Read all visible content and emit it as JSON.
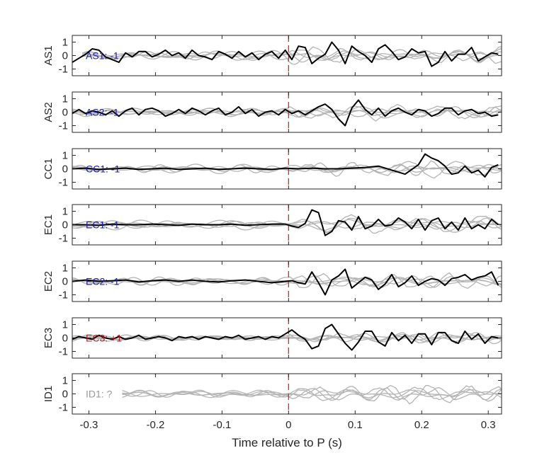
{
  "chart_data": {
    "type": "line",
    "xlabel": "Time relative to P (s)",
    "xlim": [
      -0.325,
      0.32
    ],
    "ylim": [
      -1.5,
      1.5
    ],
    "xticks": [
      -0.3,
      -0.2,
      -0.1,
      0,
      0.1,
      0.2,
      0.3
    ],
    "xtick_labels": [
      "-0.3",
      "-0.2",
      "-0.1",
      "0",
      "0.1",
      "0.2",
      "0.3"
    ],
    "yticks": [
      -1,
      0,
      1
    ],
    "ytick_labels": [
      "-1",
      "0",
      "1"
    ],
    "marker_line": {
      "x": 0,
      "color": "#e8231f",
      "style": "dashed"
    },
    "colors": {
      "trace": "#000000",
      "background_traces": "#b4b4b4",
      "axes": "#262626"
    },
    "panels": [
      {
        "station": "AS1",
        "annotation": "AS1: -1",
        "annotation_color": "#1a1aa6",
        "x": [
          -0.325,
          -0.315,
          -0.305,
          -0.295,
          -0.285,
          -0.275,
          -0.265,
          -0.255,
          -0.245,
          -0.235,
          -0.225,
          -0.215,
          -0.205,
          -0.195,
          -0.185,
          -0.175,
          -0.165,
          -0.155,
          -0.145,
          -0.135,
          -0.125,
          -0.115,
          -0.105,
          -0.095,
          -0.085,
          -0.075,
          -0.065,
          -0.055,
          -0.045,
          -0.035,
          -0.025,
          -0.015,
          -0.005,
          0.005,
          0.015,
          0.025,
          0.035,
          0.045,
          0.055,
          0.065,
          0.075,
          0.085,
          0.095,
          0.105,
          0.115,
          0.125,
          0.135,
          0.145,
          0.155,
          0.165,
          0.175,
          0.185,
          0.195,
          0.205,
          0.215,
          0.225,
          0.235,
          0.245,
          0.255,
          0.265,
          0.275,
          0.285,
          0.295,
          0.305,
          0.315
        ],
        "y": [
          -0.5,
          -0.2,
          0.1,
          0.5,
          0.4,
          -0.1,
          -0.3,
          -0.5,
          0.2,
          -0.1,
          0.3,
          0.3,
          -0.1,
          0.1,
          0.4,
          0,
          0.2,
          -0.2,
          0.4,
          0,
          -0.1,
          -0.3,
          0.3,
          0.1,
          -0.2,
          0.3,
          -0.1,
          0.2,
          -0.3,
          0.1,
          0.3,
          -0.2,
          0.4,
          -0.3,
          0.7,
          0.6,
          -0.6,
          -0.2,
          0.1,
          1,
          0.4,
          -0.6,
          0.7,
          0.3,
          0,
          -0.5,
          0.5,
          0.8,
          0.3,
          -0.3,
          -0.1,
          0.5,
          0.2,
          0.3,
          -0.8,
          -0.5,
          0.3,
          -0.4,
          0.1,
          0.1,
          0.6,
          -0.4,
          -0.1,
          0.2,
          0.1
        ]
      },
      {
        "station": "AS2",
        "annotation": "AS2: -1",
        "annotation_color": "#1a1aa6",
        "x": [
          -0.325,
          -0.315,
          -0.305,
          -0.295,
          -0.285,
          -0.275,
          -0.265,
          -0.255,
          -0.245,
          -0.235,
          -0.225,
          -0.215,
          -0.205,
          -0.195,
          -0.185,
          -0.175,
          -0.165,
          -0.155,
          -0.145,
          -0.135,
          -0.125,
          -0.115,
          -0.105,
          -0.095,
          -0.085,
          -0.075,
          -0.065,
          -0.055,
          -0.045,
          -0.035,
          -0.025,
          -0.015,
          -0.005,
          0.005,
          0.015,
          0.025,
          0.035,
          0.045,
          0.055,
          0.065,
          0.075,
          0.085,
          0.095,
          0.105,
          0.115,
          0.125,
          0.135,
          0.145,
          0.155,
          0.165,
          0.175,
          0.185,
          0.195,
          0.205,
          0.215,
          0.225,
          0.235,
          0.245,
          0.255,
          0.265,
          0.275,
          0.285,
          0.295,
          0.305,
          0.315
        ],
        "y": [
          -0.1,
          0.2,
          -0.1,
          0.1,
          0,
          -0.2,
          0.1,
          -0.3,
          0.1,
          0.3,
          -0.2,
          0.2,
          0.3,
          0.1,
          -0.3,
          -0.1,
          0.2,
          -0.1,
          0.3,
          0.1,
          -0.2,
          0.1,
          0.3,
          -0.2,
          0,
          0.4,
          -0.1,
          0.2,
          -0.3,
          0,
          0.1,
          -0.2,
          0.2,
          -0.1,
          0.1,
          -0.2,
          0.1,
          0.4,
          0.6,
          0.2,
          -0.5,
          -1,
          0.3,
          0.9,
          0.2,
          -0.2,
          0.3,
          -0.3,
          0.1,
          0.3,
          0,
          -0.2,
          0.2,
          0.1,
          -0.3,
          -0.1,
          0.3,
          0.3,
          -0.2,
          0.1,
          0.2,
          -0.1,
          0,
          -0.3,
          -0.2
        ]
      },
      {
        "station": "CC1",
        "annotation": "CC1: -1",
        "annotation_color": "#1a1aa6",
        "x": [
          -0.325,
          -0.305,
          -0.285,
          -0.265,
          -0.245,
          -0.225,
          -0.205,
          -0.185,
          -0.165,
          -0.145,
          -0.125,
          -0.105,
          -0.085,
          -0.065,
          -0.045,
          -0.025,
          -0.005,
          0.015,
          0.035,
          0.055,
          0.075,
          0.095,
          0.115,
          0.135,
          0.155,
          0.175,
          0.195,
          0.205,
          0.215,
          0.225,
          0.235,
          0.245,
          0.255,
          0.265,
          0.275,
          0.285,
          0.295,
          0.305,
          0.315
        ],
        "y": [
          0,
          0.05,
          -0.05,
          0,
          0.05,
          -0.05,
          0,
          0.05,
          -0.05,
          0,
          0.05,
          -0.05,
          0,
          0.05,
          0,
          -0.05,
          0.05,
          0,
          0.05,
          0,
          0,
          0.05,
          0.1,
          0.2,
          -0.1,
          -0.4,
          0.3,
          1.1,
          0.8,
          0.6,
          0.2,
          -0.4,
          -0.3,
          0.2,
          -0.3,
          -0.1,
          -0.6,
          0.1,
          0.3
        ]
      },
      {
        "station": "EC1",
        "annotation": "EC1: -1",
        "annotation_color": "#1a1aa6",
        "x": [
          -0.325,
          -0.305,
          -0.285,
          -0.265,
          -0.245,
          -0.225,
          -0.205,
          -0.185,
          -0.165,
          -0.145,
          -0.125,
          -0.105,
          -0.085,
          -0.065,
          -0.045,
          -0.025,
          -0.005,
          0.005,
          0.015,
          0.025,
          0.035,
          0.045,
          0.055,
          0.065,
          0.075,
          0.085,
          0.095,
          0.105,
          0.115,
          0.125,
          0.135,
          0.145,
          0.155,
          0.165,
          0.175,
          0.185,
          0.195,
          0.205,
          0.215,
          0.225,
          0.235,
          0.245,
          0.255,
          0.265,
          0.275,
          0.285,
          0.295,
          0.305,
          0.315
        ],
        "y": [
          0,
          0,
          -0.05,
          0.05,
          0,
          0,
          0.05,
          0,
          -0.05,
          0.05,
          0,
          0,
          0.05,
          -0.05,
          0,
          0.05,
          0.05,
          -0.1,
          -0.2,
          0.1,
          1.1,
          0.9,
          -0.8,
          -0.5,
          0.3,
          0.2,
          -0.4,
          0.6,
          -0.3,
          -0.1,
          0.4,
          -0.1,
          0,
          0.5,
          0.2,
          -0.3,
          0.4,
          -0.4,
          0.3,
          0.5,
          -0.3,
          0.2,
          -0.4,
          0.5,
          -0.3,
          0,
          -0.3,
          0.4,
          0
        ]
      },
      {
        "station": "EC2",
        "annotation": "EC2: -1",
        "annotation_color": "#1a1aa6",
        "x": [
          -0.325,
          -0.305,
          -0.285,
          -0.265,
          -0.245,
          -0.225,
          -0.205,
          -0.185,
          -0.165,
          -0.145,
          -0.125,
          -0.105,
          -0.085,
          -0.065,
          -0.045,
          -0.025,
          -0.005,
          0.005,
          0.015,
          0.025,
          0.035,
          0.045,
          0.055,
          0.065,
          0.075,
          0.085,
          0.095,
          0.105,
          0.115,
          0.125,
          0.135,
          0.145,
          0.155,
          0.165,
          0.175,
          0.185,
          0.195,
          0.205,
          0.215,
          0.225,
          0.235,
          0.245,
          0.255,
          0.265,
          0.275,
          0.285,
          0.295,
          0.305,
          0.315
        ],
        "y": [
          0,
          0.1,
          0,
          0.05,
          0.1,
          -0.05,
          0.05,
          0.1,
          0,
          0.1,
          0,
          -0.05,
          0.05,
          0.1,
          0,
          -0.1,
          0,
          0.05,
          -0.1,
          -0.2,
          0.7,
          -0.1,
          -1,
          0.1,
          0.4,
          0.9,
          -0.5,
          -0.1,
          0.3,
          0.1,
          -0.6,
          -0.2,
          0.5,
          -0.4,
          -0.1,
          0.4,
          -0.3,
          0,
          0.2,
          0.1,
          -0.3,
          0.2,
          0.3,
          0.5,
          0.1,
          0.3,
          0.4,
          0.7,
          -0.3
        ]
      },
      {
        "station": "EC3",
        "annotation": "EC3: +1",
        "annotation_color": "#b8141c",
        "x": [
          -0.325,
          -0.315,
          -0.305,
          -0.295,
          -0.285,
          -0.275,
          -0.265,
          -0.255,
          -0.245,
          -0.235,
          -0.225,
          -0.215,
          -0.205,
          -0.195,
          -0.185,
          -0.175,
          -0.165,
          -0.155,
          -0.145,
          -0.135,
          -0.125,
          -0.115,
          -0.105,
          -0.095,
          -0.085,
          -0.075,
          -0.065,
          -0.055,
          -0.045,
          -0.035,
          -0.025,
          -0.015,
          -0.005,
          0.005,
          0.015,
          0.025,
          0.035,
          0.045,
          0.055,
          0.065,
          0.075,
          0.085,
          0.095,
          0.105,
          0.115,
          0.125,
          0.135,
          0.145,
          0.155,
          0.165,
          0.175,
          0.185,
          0.195,
          0.205,
          0.215,
          0.225,
          0.235,
          0.245,
          0.255,
          0.265,
          0.275,
          0.285,
          0.295,
          0.305,
          0.315
        ],
        "y": [
          -0.1,
          0.1,
          0,
          -0.1,
          0.2,
          0,
          -0.1,
          0.1,
          -0.1,
          0,
          0.2,
          -0.1,
          0,
          0.1,
          0,
          -0.2,
          0.1,
          0,
          0.1,
          -0.1,
          0.1,
          0,
          -0.1,
          0.1,
          0,
          0.2,
          -0.1,
          0,
          0.1,
          -0.1,
          0.1,
          0,
          0.3,
          0.6,
          0.2,
          -0.1,
          -0.8,
          -0.6,
          0.7,
          1,
          0.3,
          -0.4,
          -0.9,
          -0.3,
          0.5,
          0.5,
          -0.3,
          -0.6,
          0.4,
          -0.2,
          0.2,
          -0.4,
          0.3,
          0.3,
          -0.5,
          0.4,
          0.4,
          -0.2,
          -0.4,
          0.5,
          -0.1,
          0.3,
          -0.4,
          0.1,
          0
        ]
      },
      {
        "station": "ID1",
        "annotation": "ID1: ?",
        "annotation_color": "#999999",
        "x": [],
        "y": []
      }
    ]
  }
}
